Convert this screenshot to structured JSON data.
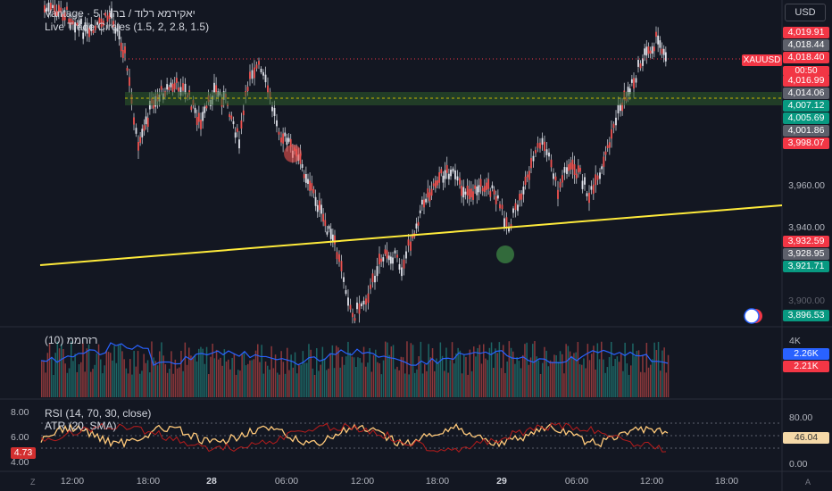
{
  "legend": {
    "line1": "Vantage · 5 · יאקירמא רלוד / בהז",
    "line2": "Live Trade Circles (1.5, 2, 2.8, 1.5)"
  },
  "currency": "USD",
  "symbol": "XAUUSD",
  "countdown": "00:50",
  "price_axis": [
    "3,960.00",
    "3,940.00",
    "3,900.00"
  ],
  "price_labels": [
    {
      "text": "4,019.91",
      "color": "#f23645"
    },
    {
      "text": "4,018.44",
      "color": "#5d606b"
    },
    {
      "text": "4,018.40",
      "color": "#f23645"
    },
    {
      "text": "4,016.99",
      "color": "#f23645"
    },
    {
      "text": "4,014.06",
      "color": "#5d606b"
    },
    {
      "text": "4,007.12",
      "color": "#089981"
    },
    {
      "text": "4,005.69",
      "color": "#089981"
    },
    {
      "text": "4,001.86",
      "color": "#5d606b"
    },
    {
      "text": "3,998.07",
      "color": "#f23645"
    },
    {
      "text": "3,932.59",
      "color": "#f23645"
    },
    {
      "text": "3,928.95",
      "color": "#5d606b"
    },
    {
      "text": "3,921.71",
      "color": "#089981"
    },
    {
      "text": "3,896.53",
      "color": "#089981"
    }
  ],
  "volume": {
    "label": "רזחממ (10)",
    "axis_top": "4K",
    "values": [
      {
        "text": "2.26K",
        "color": "#2962ff"
      },
      {
        "text": "2.21K",
        "color": "#f23645"
      }
    ]
  },
  "rsi": {
    "label_rsi": "RSI (14, 70, 30, close)",
    "label_atr": "ATR (20, SMA)",
    "left_axis": [
      "8.00",
      "6.00",
      "4.00"
    ],
    "atr_value": "4.73",
    "right_axis": [
      "80.00",
      "0.00"
    ],
    "rsi_value": "46.04"
  },
  "time_axis": [
    {
      "text": "12:00",
      "x": 81,
      "bold": false
    },
    {
      "text": "18:00",
      "x": 166,
      "bold": false
    },
    {
      "text": "28",
      "x": 237,
      "bold": true
    },
    {
      "text": "06:00",
      "x": 321,
      "bold": false
    },
    {
      "text": "12:00",
      "x": 406,
      "bold": false
    },
    {
      "text": "18:00",
      "x": 490,
      "bold": false
    },
    {
      "text": "29",
      "x": 562,
      "bold": true
    },
    {
      "text": "06:00",
      "x": 646,
      "bold": false
    },
    {
      "text": "12:00",
      "x": 730,
      "bold": false
    },
    {
      "text": "18:00",
      "x": 814,
      "bold": false
    }
  ],
  "corner_left": "Z",
  "corner_right": "A"
}
